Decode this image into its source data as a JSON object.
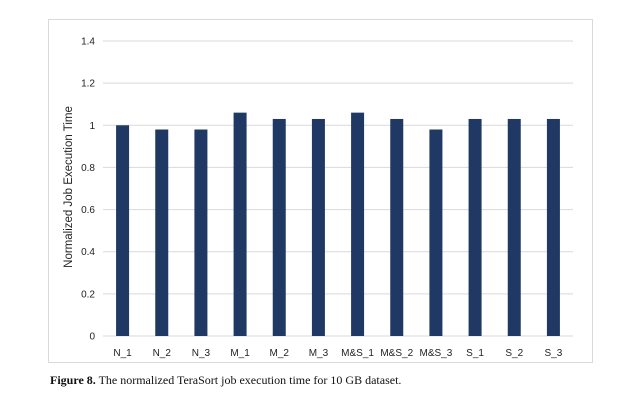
{
  "chart_data": {
    "type": "bar",
    "categories": [
      "N_1",
      "N_2",
      "N_3",
      "M_1",
      "M_2",
      "M_3",
      "M&S_1",
      "M&S_2",
      "M&S_3",
      "S_1",
      "S_2",
      "S_3"
    ],
    "values": [
      1.0,
      0.98,
      0.98,
      1.06,
      1.03,
      1.03,
      1.06,
      1.03,
      0.98,
      1.03,
      1.03,
      1.03
    ],
    "ylabel": "Normalized Job Execution Time",
    "xlabel": "",
    "ylim": [
      0,
      1.4
    ],
    "yticks": [
      "0",
      "0.2",
      "0.4",
      "0.6",
      "0.8",
      "1",
      "1.2",
      "1.4"
    ],
    "grid": true,
    "bar_color": "#1f3864",
    "grid_color": "#d9d9d9"
  },
  "caption": {
    "label": "Figure 8.",
    "text": " The normalized TeraSort job execution time for 10 GB dataset."
  }
}
